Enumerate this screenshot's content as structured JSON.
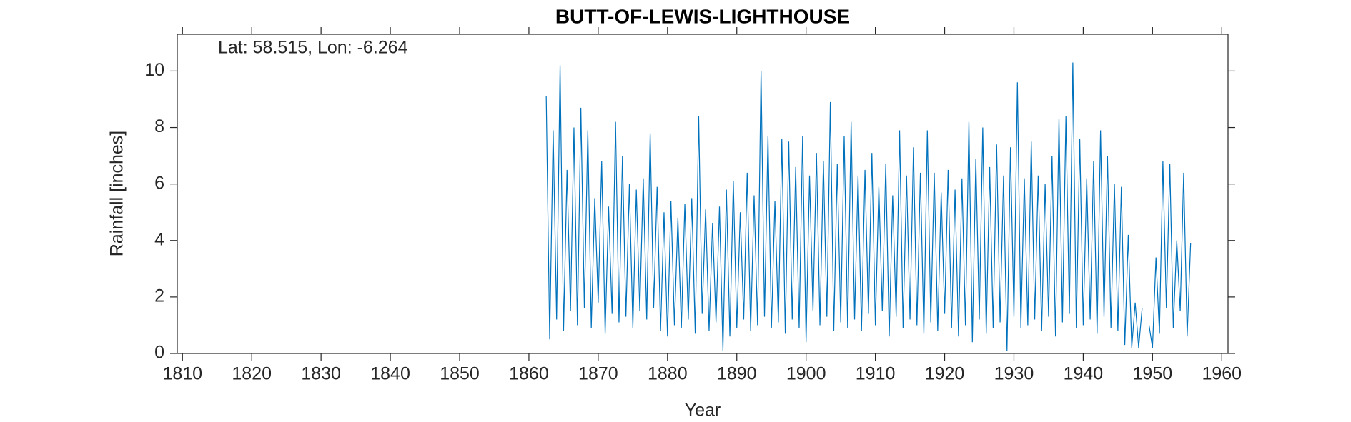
{
  "chart_data": {
    "type": "line",
    "title": "BUTT-OF-LEWIS-LIGHTHOUSE",
    "annotation": "Lat: 58.515, Lon: -6.264",
    "x_label": "Year",
    "y_label": "Rainfall [inches]",
    "color": "#0072bd",
    "xlim": [
      1809.25,
      1960.9
    ],
    "ylim": [
      0,
      11.3
    ],
    "xticks": [
      1810,
      1820,
      1830,
      1840,
      1850,
      1860,
      1870,
      1880,
      1890,
      1900,
      1910,
      1920,
      1930,
      1940,
      1950,
      1960
    ],
    "yticks": [
      0,
      2,
      4,
      6,
      8,
      10
    ],
    "x": [
      1862.5,
      1863,
      1863.5,
      1864,
      1864.5,
      1865,
      1865.5,
      1866,
      1866.5,
      1867,
      1867.5,
      1868,
      1868.5,
      1869,
      1869.5,
      1870,
      1870.5,
      1871,
      1871.5,
      1872,
      1872.5,
      1873,
      1873.5,
      1874,
      1874.5,
      1875,
      1875.5,
      1876,
      1876.5,
      1877,
      1877.5,
      1878,
      1878.5,
      1879,
      1879.5,
      1880,
      1880.5,
      1881,
      1881.5,
      1882,
      1882.5,
      1883,
      1883.5,
      1884,
      1884.5,
      1885,
      1885.5,
      1886,
      1886.5,
      1887,
      1887.5,
      1888,
      1888.5,
      1889,
      1889.5,
      1890,
      1890.5,
      1891,
      1891.5,
      1892,
      1892.5,
      1893,
      1893.5,
      1894,
      1894.5,
      1895,
      1895.5,
      1896,
      1896.5,
      1897,
      1897.5,
      1898,
      1898.5,
      1899,
      1899.5,
      1900,
      1900.5,
      1901,
      1901.5,
      1902,
      1902.5,
      1903,
      1903.5,
      1904,
      1904.5,
      1905,
      1905.5,
      1906,
      1906.5,
      1907,
      1907.5,
      1908,
      1908.5,
      1909,
      1909.5,
      1910,
      1910.5,
      1911,
      1911.5,
      1912,
      1912.5,
      1913,
      1913.5,
      1914,
      1914.5,
      1915,
      1915.5,
      1916,
      1916.5,
      1917,
      1917.5,
      1918,
      1918.5,
      1919,
      1919.5,
      1920,
      1920.5,
      1921,
      1921.5,
      1922,
      1922.5,
      1923,
      1923.5,
      1924,
      1924.5,
      1925,
      1925.5,
      1926,
      1926.5,
      1927,
      1927.5,
      1928,
      1928.5,
      1929,
      1929.5,
      1930,
      1930.5,
      1931,
      1931.5,
      1932,
      1932.5,
      1933,
      1933.5,
      1934,
      1934.5,
      1935,
      1935.5,
      1936,
      1936.5,
      1937,
      1937.5,
      1938,
      1938.5,
      1939,
      1939.5,
      1940,
      1940.5,
      1941,
      1941.5,
      1942,
      1942.5,
      1943,
      1943.5,
      1944,
      1944.5,
      1945,
      1945.5,
      1946,
      1946.5,
      1947,
      1947.5,
      1948,
      1948.5,
      1949,
      1949.5,
      1950,
      1950.5,
      1951,
      1951.5,
      1952,
      1952.5,
      1953,
      1953.5,
      1954,
      1954.5,
      1955,
      1955.5
    ],
    "values": [
      9.1,
      0.5,
      7.9,
      1.2,
      10.2,
      0.8,
      6.5,
      1.5,
      8.0,
      1.0,
      8.7,
      1.6,
      7.9,
      0.9,
      5.5,
      1.8,
      6.8,
      0.7,
      5.2,
      1.4,
      8.2,
      1.1,
      7.0,
      1.3,
      6.0,
      0.9,
      5.8,
      1.5,
      6.2,
      1.2,
      7.8,
      1.6,
      5.9,
      0.8,
      5.0,
      0.6,
      5.4,
      1.0,
      4.8,
      0.9,
      5.3,
      1.2,
      5.5,
      0.7,
      8.4,
      1.4,
      5.1,
      0.8,
      4.6,
      1.1,
      5.2,
      0.1,
      5.8,
      0.6,
      6.1,
      0.9,
      5.0,
      1.2,
      6.4,
      0.8,
      5.6,
      1.0,
      10.0,
      1.3,
      7.7,
      0.9,
      5.4,
      1.1,
      7.6,
      0.7,
      7.5,
      1.2,
      6.6,
      0.9,
      7.7,
      0.4,
      6.3,
      1.5,
      7.1,
      1.0,
      6.8,
      1.3,
      8.9,
      0.8,
      6.7,
      1.1,
      7.7,
      0.9,
      8.2,
      1.2,
      6.3,
      0.8,
      6.5,
      1.4,
      7.1,
      1.0,
      5.9,
      1.5,
      6.7,
      0.6,
      5.6,
      1.3,
      7.9,
      0.9,
      6.3,
      1.2,
      7.3,
      1.0,
      6.4,
      0.7,
      7.9,
      1.1,
      6.4,
      0.8,
      5.7,
      1.4,
      6.5,
      0.9,
      5.8,
      0.6,
      6.2,
      1.0,
      8.2,
      0.4,
      6.9,
      1.2,
      8.0,
      0.7,
      6.6,
      0.9,
      7.4,
      1.1,
      6.3,
      0.1,
      7.3,
      1.3,
      9.6,
      0.9,
      6.2,
      1.0,
      7.5,
      1.2,
      6.3,
      0.8,
      6.0,
      1.3,
      7.0,
      0.6,
      8.3,
      1.1,
      8.4,
      1.4,
      10.3,
      0.9,
      7.6,
      1.0,
      6.2,
      1.2,
      6.8,
      0.7,
      7.9,
      1.3,
      7.0,
      0.9,
      6.0,
      0.8,
      5.9,
      0.3,
      4.2,
      0.2,
      1.8,
      0.2,
      1.6,
      null,
      1.0,
      0.2,
      3.4,
      0.7,
      6.8,
      1.6,
      6.7,
      0.9,
      4.0,
      1.5,
      6.4,
      0.6,
      3.9
    ]
  }
}
